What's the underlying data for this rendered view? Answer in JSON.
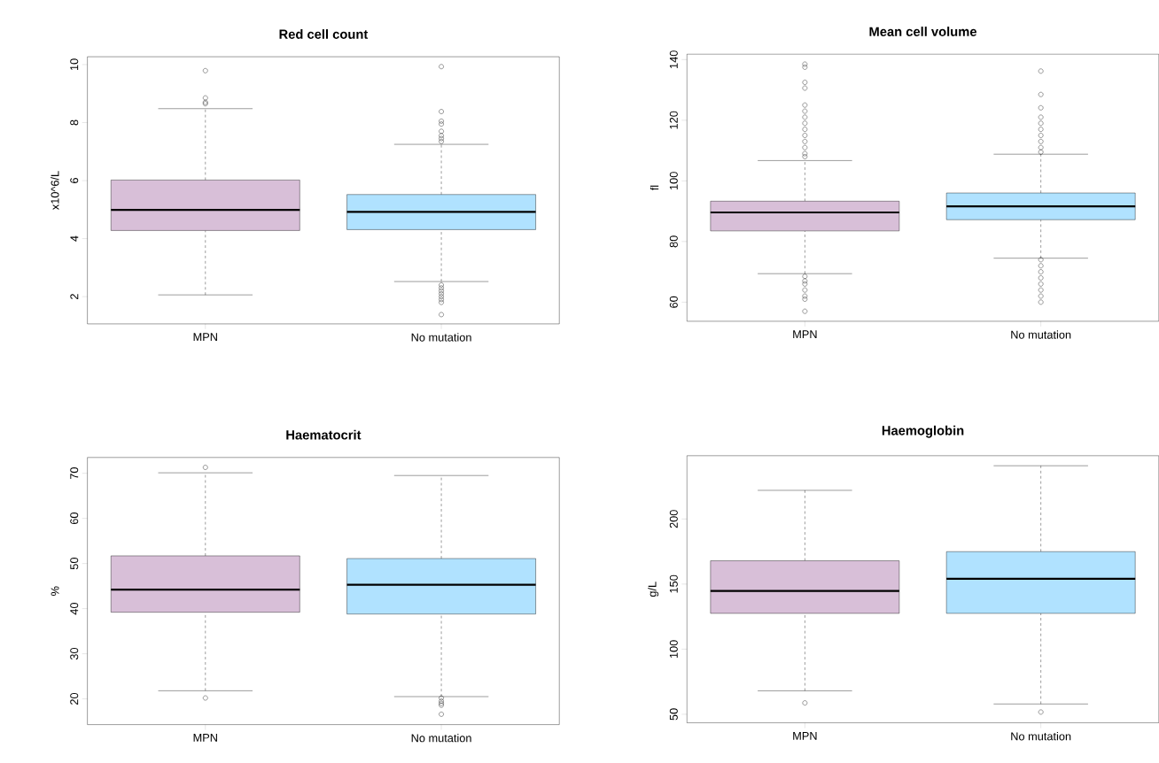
{
  "chart_data": [
    {
      "type": "box",
      "title": "Red cell count",
      "ylabel": "x10^6/L",
      "categories": [
        "MPN",
        "No mutation"
      ],
      "colors": [
        "#d8bfd8",
        "#b0e2ff"
      ],
      "ylim": [
        1.06,
        10.27
      ],
      "yticks": [
        2,
        4,
        6,
        8,
        10
      ],
      "boxes": [
        {
          "low": 2.06,
          "q1": 4.28,
          "median": 4.99,
          "q3": 6.02,
          "high": 8.48,
          "outliers": [
            9.79,
            8.85,
            8.7,
            8.65
          ]
        },
        {
          "low": 2.52,
          "q1": 4.31,
          "median": 4.92,
          "q3": 5.52,
          "high": 7.25,
          "outliers": [
            9.93,
            8.38,
            8.05,
            7.95,
            7.7,
            7.55,
            7.45,
            7.35,
            2.4,
            2.3,
            2.2,
            2.1,
            2.0,
            1.9,
            1.8,
            1.38
          ]
        }
      ]
    },
    {
      "type": "box",
      "title": "Mean cell volume",
      "ylabel": "fl",
      "categories": [
        "MPN",
        "No mutation"
      ],
      "colors": [
        "#d8bfd8",
        "#b0e2ff"
      ],
      "ylim": [
        53.7,
        141.8
      ],
      "yticks": [
        60,
        80,
        100,
        120,
        140
      ],
      "boxes": [
        {
          "low": 69.4,
          "q1": 83.5,
          "median": 89.6,
          "q3": 93.3,
          "high": 106.7,
          "outliers": [
            138.5,
            137.5,
            132.5,
            130.6,
            125,
            123,
            121,
            119,
            117,
            115,
            113,
            111,
            109,
            108,
            68.5,
            67,
            66,
            64,
            62,
            61,
            57
          ]
        },
        {
          "low": 74.5,
          "q1": 87.2,
          "median": 91.6,
          "q3": 96.0,
          "high": 108.8,
          "outliers": [
            136.2,
            128.5,
            124.1,
            121,
            119,
            117,
            115,
            113,
            111,
            109.5,
            74,
            72,
            70,
            68,
            66,
            64,
            62,
            60
          ]
        }
      ]
    },
    {
      "type": "box",
      "title": "Haematocrit",
      "ylabel": "%",
      "categories": [
        "MPN",
        "No mutation"
      ],
      "colors": [
        "#d8bfd8",
        "#b0e2ff"
      ],
      "ylim": [
        14.3,
        73.5
      ],
      "yticks": [
        20,
        30,
        40,
        50,
        60,
        70
      ],
      "boxes": [
        {
          "low": 21.8,
          "q1": 39.2,
          "median": 44.2,
          "q3": 51.7,
          "high": 70.1,
          "outliers": [
            71.3,
            20.2
          ]
        },
        {
          "low": 20.5,
          "q1": 38.8,
          "median": 45.3,
          "q3": 51.1,
          "high": 69.5,
          "outliers": [
            20.2,
            19.5,
            19.0,
            18.6,
            16.6
          ]
        }
      ]
    },
    {
      "type": "box",
      "title": "Haemoglobin",
      "ylabel": "g/L",
      "categories": [
        "MPN",
        "No mutation"
      ],
      "colors": [
        "#d8bfd8",
        "#b0e2ff"
      ],
      "ylim": [
        43.4,
        248.6
      ],
      "yticks": [
        50,
        100,
        150,
        200
      ],
      "boxes": [
        {
          "low": 68,
          "q1": 127.5,
          "median": 144.7,
          "q3": 167.9,
          "high": 222,
          "outliers": [
            58.7
          ]
        },
        {
          "low": 57.9,
          "q1": 127.5,
          "median": 154.1,
          "q3": 174.9,
          "high": 240.9,
          "outliers": [
            51.7
          ]
        }
      ]
    }
  ]
}
